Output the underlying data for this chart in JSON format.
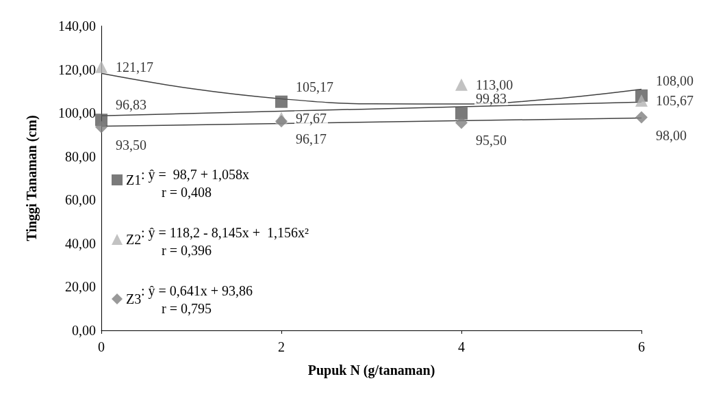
{
  "chart_data": {
    "type": "scatter",
    "xlabel": "Pupuk N (g/tanaman)",
    "ylabel": "Tinggi Tanaman (cm)",
    "xlim": [
      0,
      6
    ],
    "xticks": [
      0,
      2,
      4,
      6
    ],
    "ylim": [
      0,
      140
    ],
    "yticks": [
      {
        "value": 0,
        "label": "0,00"
      },
      {
        "value": 20,
        "label": "20,00"
      },
      {
        "value": 40,
        "label": "40,00"
      },
      {
        "value": 60,
        "label": "60,00"
      },
      {
        "value": 80,
        "label": "80,00"
      },
      {
        "value": 100,
        "label": "100,00"
      },
      {
        "value": 120,
        "label": "120,00"
      },
      {
        "value": 140,
        "label": "140,00"
      }
    ],
    "x": [
      0,
      2,
      4,
      6
    ],
    "grid": false,
    "legend": "left",
    "series": [
      {
        "name": "Z1",
        "color": "#595959",
        "marker": "square",
        "values": [
          96.83,
          105.17,
          99.83,
          108.0
        ],
        "value_labels": [
          "96,83",
          "105,17",
          "99,83",
          "108,00"
        ]
      },
      {
        "name": "Z2",
        "color": "#b3b3b3",
        "marker": "triangle",
        "values": [
          121.17,
          97.67,
          113.0,
          105.67
        ],
        "value_labels": [
          "121,17",
          "97,67",
          "113,00",
          "105,67"
        ]
      },
      {
        "name": "Z3",
        "color": "#808080",
        "marker": "diamond",
        "values": [
          93.5,
          96.17,
          95.5,
          98.0
        ],
        "value_labels": [
          "93,50",
          "96,17",
          "95,50",
          "98,00"
        ]
      },
      {
        "type": "line",
        "color": "#404040",
        "marker": "none",
        "x": [
          0,
          6
        ],
        "values": [
          98.7,
          105.0
        ]
      },
      {
        "type": "line",
        "color": "#404040",
        "marker": "none",
        "x": [
          0,
          1,
          2,
          3,
          4,
          5,
          6
        ],
        "values": [
          118.2,
          111.2,
          106.5,
          104.2,
          104.1,
          106.4,
          110.9
        ]
      },
      {
        "type": "line",
        "color": "#404040",
        "marker": "none",
        "x": [
          0,
          6
        ],
        "values": [
          93.9,
          97.7
        ]
      }
    ],
    "annotations": [
      ": ŷ =  98,7 + 1,058x\n      r = 0,408",
      ": ŷ = 118,2 - 8,145x +  1,156x²\n      r = 0,396",
      ": ŷ = 0,641x + 93,86\n      r = 0,795"
    ]
  }
}
